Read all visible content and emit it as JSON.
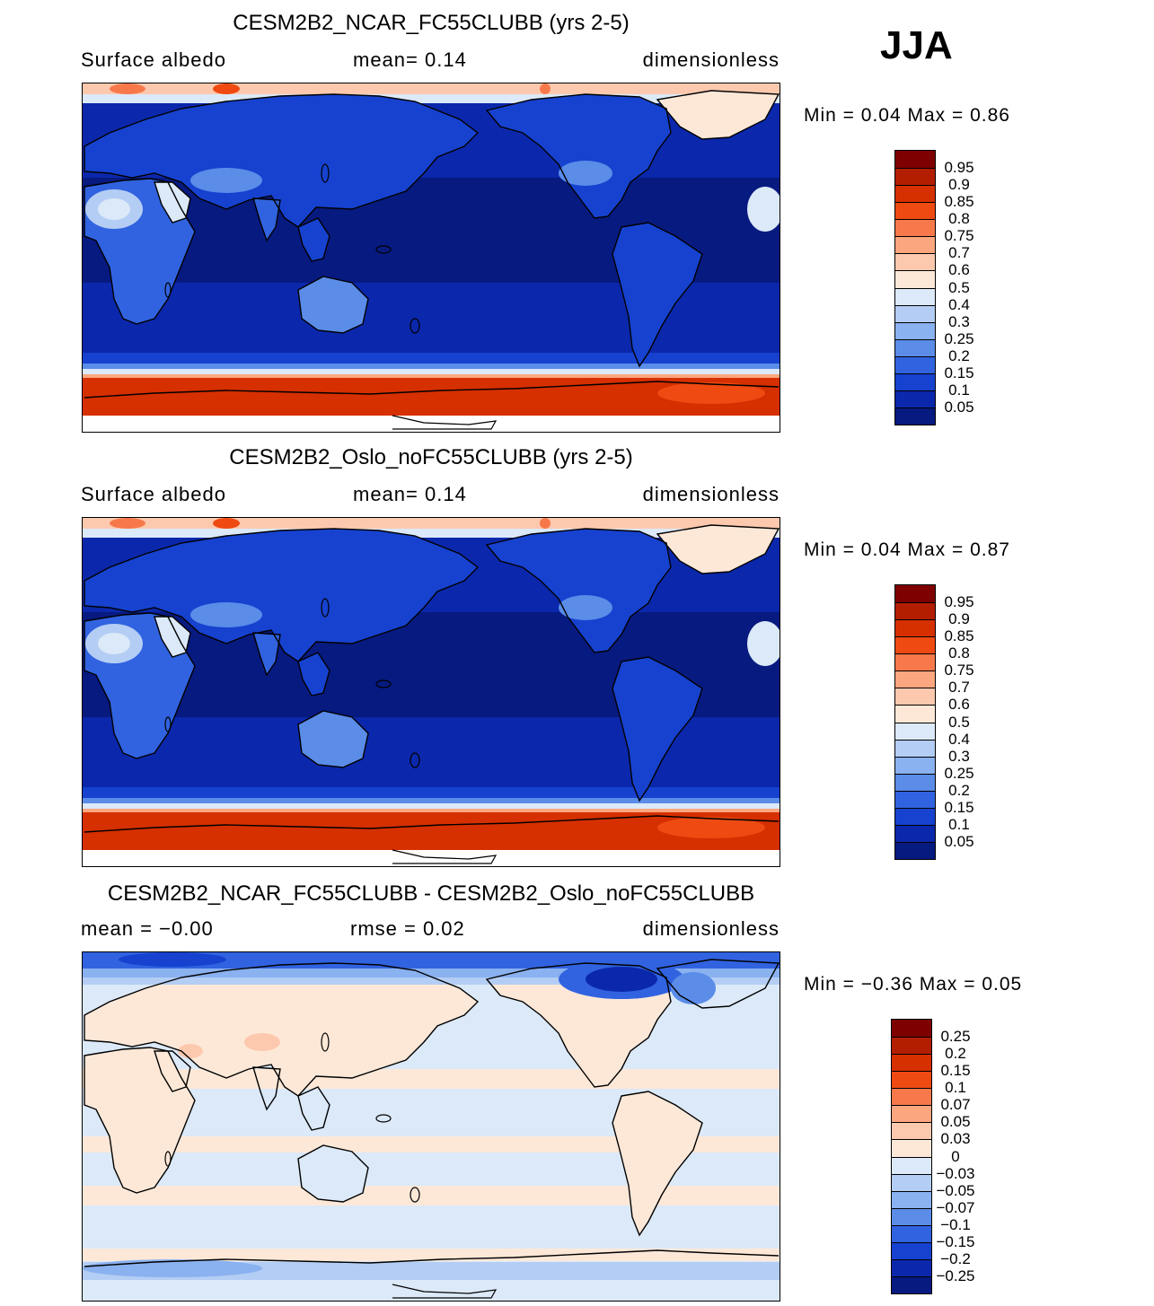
{
  "season": "JJA",
  "panels": [
    {
      "title": "CESM2B2_NCAR_FC55CLUBB (yrs 2-5)",
      "left_label": "Surface albedo",
      "center_label": "mean=    0.14",
      "right_label": "dimensionless",
      "minmax_label": "Min =    0.04  Max =     0.86",
      "field_type": "absolute",
      "colorbar_levels": [
        "0.95",
        "0.9",
        "0.85",
        "0.8",
        "0.75",
        "0.7",
        "0.6",
        "0.5",
        "0.4",
        "0.3",
        "0.25",
        "0.2",
        "0.15",
        "0.1",
        "0.05"
      ],
      "colorbar_colors": [
        "#7f0000",
        "#b31e00",
        "#d62f00",
        "#ef4a12",
        "#f7794b",
        "#fca67f",
        "#fdc9ae",
        "#fde8d8",
        "#dbe9f8",
        "#b4cdf4",
        "#8ab1f0",
        "#5a8ce8",
        "#3163e0",
        "#1642cf",
        "#0b28ac",
        "#071a80"
      ]
    },
    {
      "title": "CESM2B2_Oslo_noFC55CLUBB (yrs 2-5)",
      "left_label": "Surface albedo",
      "center_label": "mean=    0.14",
      "right_label": "dimensionless",
      "minmax_label": "Min =    0.04  Max =     0.87",
      "field_type": "absolute",
      "colorbar_levels": [
        "0.95",
        "0.9",
        "0.85",
        "0.8",
        "0.75",
        "0.7",
        "0.6",
        "0.5",
        "0.4",
        "0.3",
        "0.25",
        "0.2",
        "0.15",
        "0.1",
        "0.05"
      ],
      "colorbar_colors": [
        "#7f0000",
        "#b31e00",
        "#d62f00",
        "#ef4a12",
        "#f7794b",
        "#fca67f",
        "#fdc9ae",
        "#fde8d8",
        "#dbe9f8",
        "#b4cdf4",
        "#8ab1f0",
        "#5a8ce8",
        "#3163e0",
        "#1642cf",
        "#0b28ac",
        "#071a80"
      ]
    },
    {
      "title": "CESM2B2_NCAR_FC55CLUBB - CESM2B2_Oslo_noFC55CLUBB",
      "left_label": "mean =   −0.00",
      "center_label": "rmse =     0.02",
      "right_label": "dimensionless",
      "minmax_label": "Min =   −0.36  Max =     0.05",
      "field_type": "difference",
      "colorbar_levels": [
        "0.25",
        "0.2",
        "0.15",
        "0.1",
        "0.07",
        "0.05",
        "0.03",
        "0",
        "−0.03",
        "−0.05",
        "−0.07",
        "−0.1",
        "−0.15",
        "−0.2",
        "−0.25"
      ],
      "colorbar_colors": [
        "#7f0000",
        "#b31e00",
        "#d62f00",
        "#ef4a12",
        "#f7794b",
        "#fca67f",
        "#fdc9ae",
        "#fde8d8",
        "#dbe9f8",
        "#b4cdf4",
        "#8ab1f0",
        "#5a8ce8",
        "#3163e0",
        "#1642cf",
        "#0b28ac",
        "#071a80"
      ]
    }
  ]
}
